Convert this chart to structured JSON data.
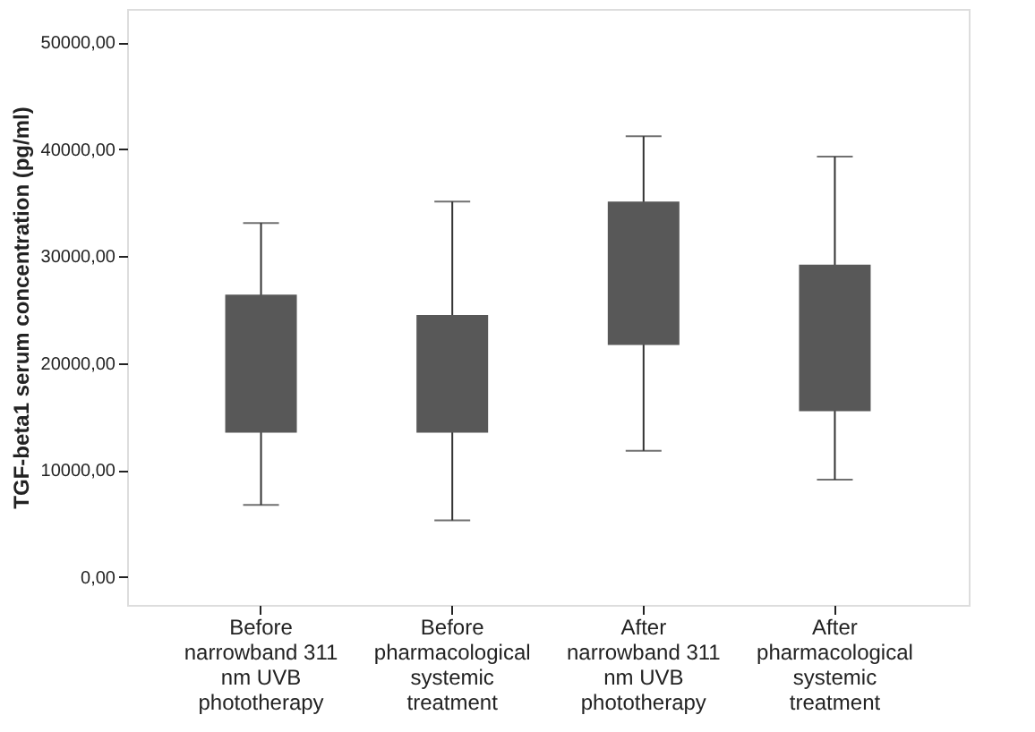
{
  "chart_data": {
    "type": "box",
    "ylabel": "TGF-beta1  serum concentration (pg/ml)",
    "categories": [
      "Before narrowband 311 nm UVB phototherapy",
      "Before pharmacological systemic treatment",
      "After narrowband 311 nm UVB phototherapy",
      "After pharmacological systemic treatment"
    ],
    "boxes": [
      {
        "low": 6750,
        "q1": 13500,
        "q3": 26400,
        "high": 33100
      },
      {
        "low": 5300,
        "q1": 13500,
        "q3": 24500,
        "high": 35100
      },
      {
        "low": 11800,
        "q1": 21700,
        "q3": 35100,
        "high": 41200
      },
      {
        "low": 9100,
        "q1": 15500,
        "q3": 29200,
        "high": 39300
      }
    ],
    "color": "#585858",
    "ylim": [
      -2600,
      53100
    ],
    "yticks": [
      {
        "value": 0,
        "label": "0,00"
      },
      {
        "value": 10000,
        "label": "10000,00"
      },
      {
        "value": 20000,
        "label": "20000,00"
      },
      {
        "value": 30000,
        "label": "30000,00"
      },
      {
        "value": 40000,
        "label": "40000,00"
      },
      {
        "value": 50000,
        "label": "50000,00"
      }
    ],
    "grid": false
  }
}
